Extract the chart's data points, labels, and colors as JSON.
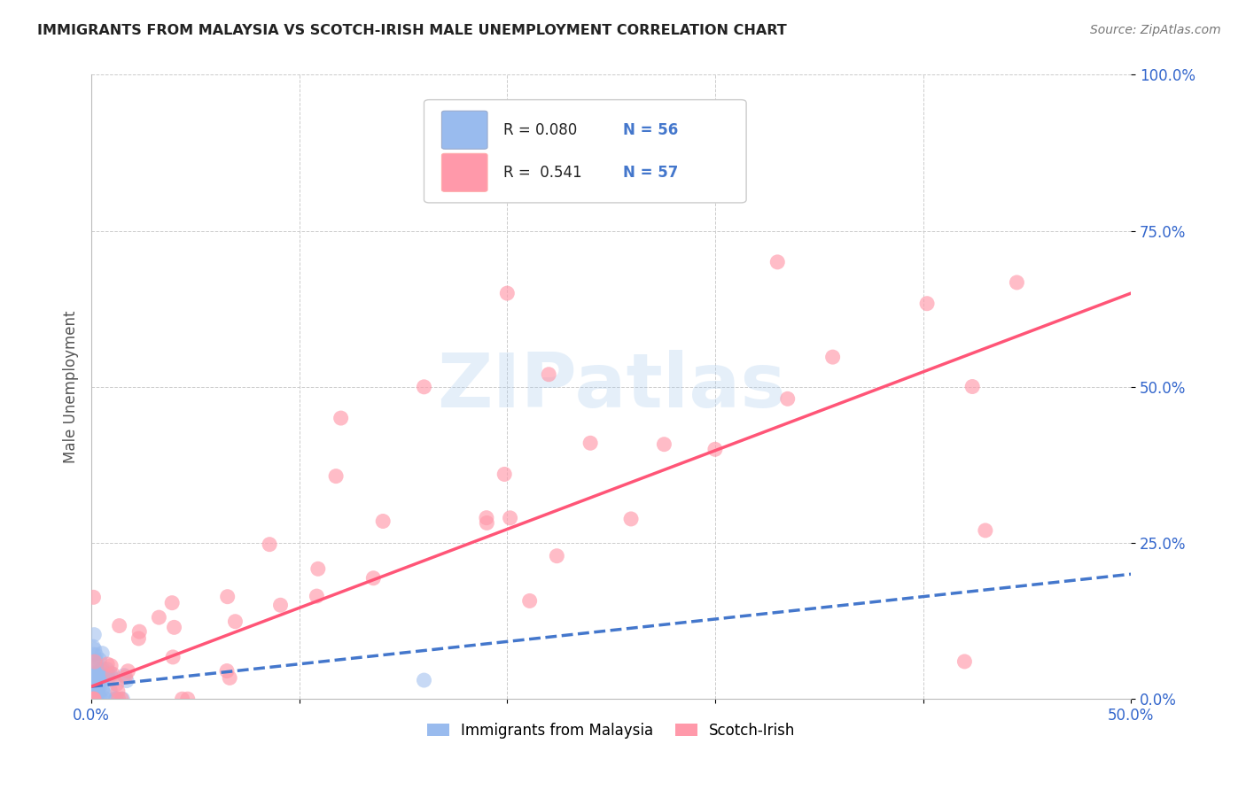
{
  "title": "IMMIGRANTS FROM MALAYSIA VS SCOTCH-IRISH MALE UNEMPLOYMENT CORRELATION CHART",
  "source": "Source: ZipAtlas.com",
  "xlim": [
    0.0,
    0.5
  ],
  "ylim": [
    0.0,
    1.0
  ],
  "legend_r1": "R = 0.080",
  "legend_n1": "N = 56",
  "legend_r2": "R =  0.541",
  "legend_n2": "N = 57",
  "color_blue": "#99BBEE",
  "color_pink": "#FF99AA",
  "color_line_blue": "#4477CC",
  "color_line_pink": "#FF5577",
  "background_color": "#FFFFFF",
  "ylabel": "Male Unemployment",
  "blue_line_x0": 0.0,
  "blue_line_y0": 0.02,
  "blue_line_x1": 0.5,
  "blue_line_y1": 0.2,
  "pink_line_x0": 0.0,
  "pink_line_y0": 0.02,
  "pink_line_x1": 0.5,
  "pink_line_y1": 0.65
}
